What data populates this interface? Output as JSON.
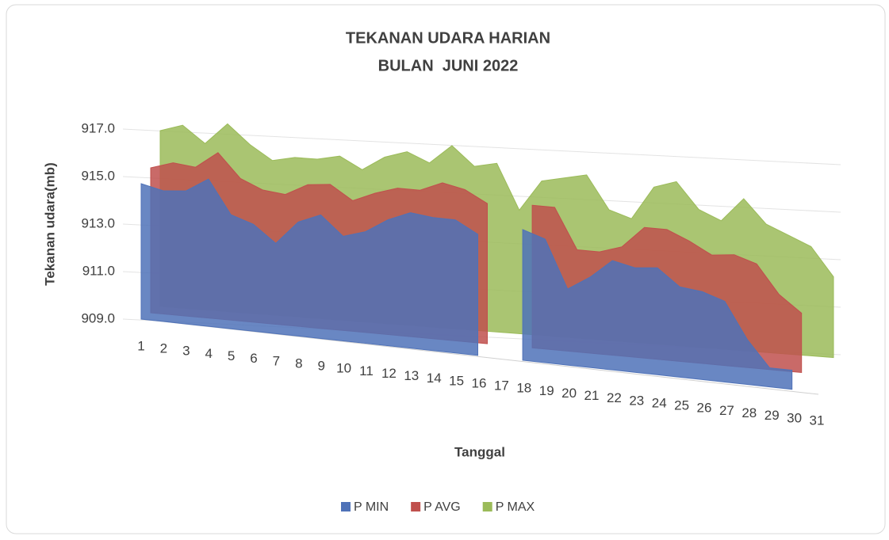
{
  "chart_data": {
    "type": "area3d",
    "title": "TEKANAN UDARA HARIAN",
    "subtitle": "BULAN  JUNI 2022",
    "y_label": "Tekanan udara(mb)",
    "x_label": "Tanggal",
    "categories": [
      "1",
      "2",
      "3",
      "4",
      "5",
      "6",
      "7",
      "8",
      "9",
      "10",
      "11",
      "12",
      "13",
      "14",
      "15",
      "16",
      "17",
      "18",
      "19",
      "20",
      "21",
      "22",
      "23",
      "24",
      "25",
      "26",
      "27",
      "28",
      "29",
      "30",
      "31"
    ],
    "series": [
      {
        "name": "P MIN",
        "color": "#4f72b8",
        "values": [
          914.7,
          914.5,
          914.6,
          915.2,
          913.8,
          913.5,
          912.8,
          913.8,
          914.2,
          913.4,
          913.7,
          914.3,
          914.7,
          914.6,
          914.6,
          914.1,
          null,
          914.5,
          914.2,
          912.2,
          912.8,
          913.6,
          913.4,
          913.5,
          912.8,
          912.7,
          912.4,
          910.9,
          909.8,
          909.8,
          null
        ]
      },
      {
        "name": "P AVG",
        "color": "#c0504d",
        "values": [
          915.1,
          915.4,
          915.3,
          916.0,
          915.0,
          914.6,
          914.5,
          915.0,
          915.1,
          914.5,
          914.9,
          915.2,
          915.2,
          915.6,
          915.4,
          914.9,
          null,
          915.0,
          915.0,
          913.3,
          913.3,
          913.6,
          914.5,
          914.5,
          914.1,
          913.6,
          913.7,
          913.4,
          912.2,
          911.5,
          null
        ]
      },
      {
        "name": "P MAX",
        "color": "#9bbb59",
        "values": [
          916.4,
          916.7,
          916.0,
          916.9,
          916.1,
          915.5,
          915.7,
          915.7,
          915.9,
          915.4,
          916.0,
          916.3,
          915.9,
          916.7,
          915.9,
          916.1,
          914.2,
          915.5,
          915.7,
          915.9,
          914.5,
          914.2,
          915.6,
          915.9,
          914.8,
          914.4,
          915.4,
          914.4,
          914.0,
          913.6,
          912.4
        ]
      }
    ],
    "ylim": [
      909,
      917
    ],
    "yticks": [
      {
        "value": 909,
        "label": "909.0"
      },
      {
        "value": 911,
        "label": "911.0"
      },
      {
        "value": 913,
        "label": "913.0"
      },
      {
        "value": 915,
        "label": "915.0"
      },
      {
        "value": 917,
        "label": "917.0"
      }
    ],
    "grid": true,
    "legend": "bottom"
  }
}
